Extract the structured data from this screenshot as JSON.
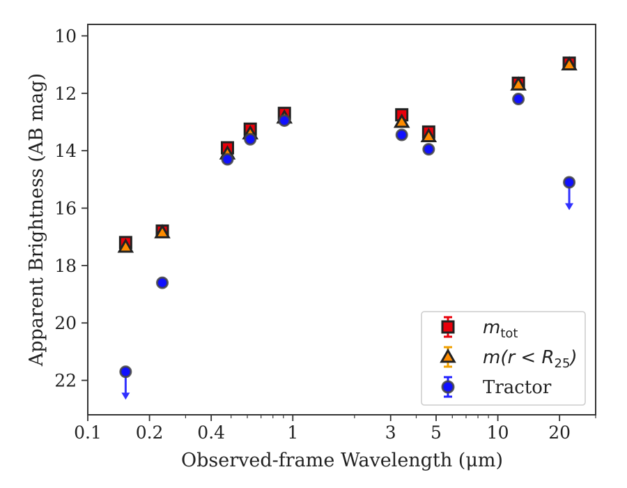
{
  "chart_data": {
    "type": "scatter",
    "xlabel": "Observed-frame Wavelength (μm)",
    "ylabel": "Apparent Brightness (AB mag)",
    "xscale": "log",
    "xlim": [
      0.1,
      30
    ],
    "ylim": [
      23.2,
      9.6
    ],
    "y_inverted": true,
    "x_ticks": [
      {
        "value": 0.1,
        "label": "0.1"
      },
      {
        "value": 0.2,
        "label": "0.2"
      },
      {
        "value": 0.4,
        "label": "0.4"
      },
      {
        "value": 1,
        "label": "1"
      },
      {
        "value": 3,
        "label": "3"
      },
      {
        "value": 5,
        "label": "5"
      },
      {
        "value": 10,
        "label": "10"
      },
      {
        "value": 20,
        "label": "20"
      }
    ],
    "x_minor_ticks": [
      0.3,
      0.5,
      0.6,
      0.7,
      0.8,
      0.9,
      2,
      4,
      6,
      7,
      8,
      9,
      30
    ],
    "y_ticks": [
      {
        "value": 10,
        "label": "10"
      },
      {
        "value": 12,
        "label": "12"
      },
      {
        "value": 14,
        "label": "14"
      },
      {
        "value": 16,
        "label": "16"
      },
      {
        "value": 18,
        "label": "18"
      },
      {
        "value": 20,
        "label": "20"
      },
      {
        "value": 22,
        "label": "22"
      }
    ],
    "legend_position": "lower-right",
    "series": [
      {
        "name": "m_tot",
        "marker": "square",
        "color": "#e8000b",
        "edge": "#222222",
        "points": [
          {
            "x": 0.153,
            "y": 17.2
          },
          {
            "x": 0.231,
            "y": 16.8
          },
          {
            "x": 0.48,
            "y": 13.9
          },
          {
            "x": 0.62,
            "y": 13.25
          },
          {
            "x": 0.91,
            "y": 12.7
          },
          {
            "x": 3.4,
            "y": 12.75
          },
          {
            "x": 4.6,
            "y": 13.35
          },
          {
            "x": 12.6,
            "y": 11.65
          },
          {
            "x": 22.3,
            "y": 10.95
          }
        ]
      },
      {
        "name": "m(r < R25)",
        "marker": "triangle",
        "color": "#ff8c00",
        "edge": "#222222",
        "points": [
          {
            "x": 0.153,
            "y": 17.35
          },
          {
            "x": 0.231,
            "y": 16.85
          },
          {
            "x": 0.48,
            "y": 14.1
          },
          {
            "x": 0.62,
            "y": 13.4
          },
          {
            "x": 0.91,
            "y": 12.85
          },
          {
            "x": 3.4,
            "y": 13.0
          },
          {
            "x": 4.6,
            "y": 13.5
          },
          {
            "x": 12.6,
            "y": 11.7
          },
          {
            "x": 22.3,
            "y": 11.0
          }
        ]
      },
      {
        "name": "Tractor",
        "marker": "circle",
        "color": "#1010ff",
        "edge": "#444444",
        "points": [
          {
            "x": 0.153,
            "y": 21.7,
            "upper_limit": true
          },
          {
            "x": 0.231,
            "y": 18.6
          },
          {
            "x": 0.48,
            "y": 14.3
          },
          {
            "x": 0.62,
            "y": 13.6
          },
          {
            "x": 0.91,
            "y": 12.95
          },
          {
            "x": 3.4,
            "y": 13.45
          },
          {
            "x": 4.6,
            "y": 13.95
          },
          {
            "x": 12.6,
            "y": 12.2
          },
          {
            "x": 22.3,
            "y": 15.1,
            "upper_limit": true
          }
        ]
      }
    ],
    "legend": {
      "entries": [
        {
          "series": 0,
          "label_main": "m",
          "label_sub": "tot",
          "label_tail": ""
        },
        {
          "series": 1,
          "label_main": "m(r < R",
          "label_sub": "25",
          "label_tail": ")"
        },
        {
          "series": 2,
          "label_main": "Tractor",
          "label_sub": "",
          "label_tail": ""
        }
      ]
    },
    "errorbar_colors": [
      "#e8000b",
      "#f0a000",
      "#2020ff"
    ],
    "arrow_color": "#3030ff"
  }
}
